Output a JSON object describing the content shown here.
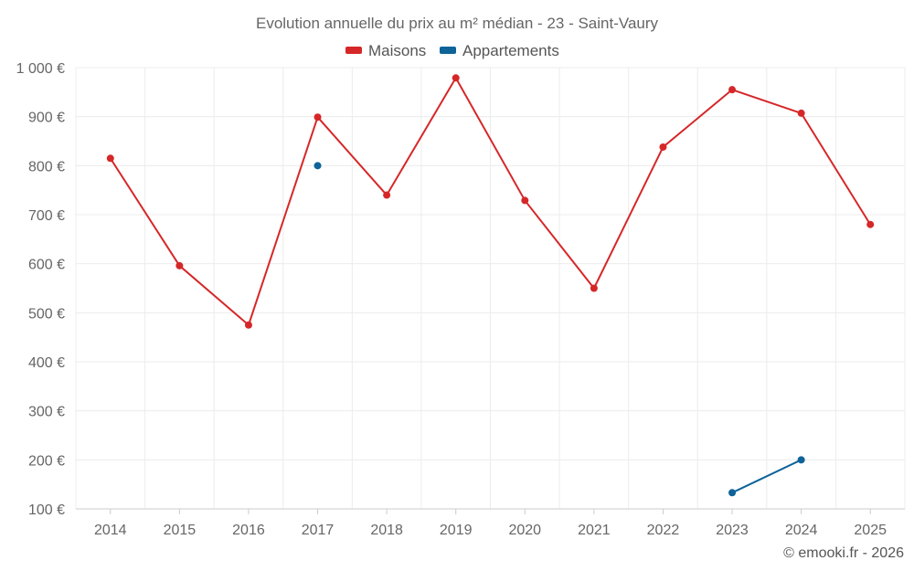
{
  "chart_data": {
    "type": "line",
    "title": "Evolution annuelle du prix au m² médian - 23 - Saint-Vaury",
    "x": [
      "2014",
      "2015",
      "2016",
      "2017",
      "2018",
      "2019",
      "2020",
      "2021",
      "2022",
      "2023",
      "2024",
      "2025"
    ],
    "y_ticks": [
      "100 €",
      "200 €",
      "300 €",
      "400 €",
      "500 €",
      "600 €",
      "700 €",
      "800 €",
      "900 €",
      "1 000 €"
    ],
    "ylim": [
      100,
      1000
    ],
    "grid": true,
    "legend_position": "top-center",
    "series": [
      {
        "name": "Maisons",
        "color": "#d62728",
        "values": [
          815,
          596,
          475,
          899,
          740,
          979,
          729,
          550,
          838,
          955,
          907,
          680
        ]
      },
      {
        "name": "Appartements",
        "color": "#0e6398",
        "values": [
          null,
          null,
          null,
          800,
          null,
          null,
          null,
          null,
          null,
          133,
          200,
          null
        ]
      }
    ],
    "credit": "© emooki.fr - 2026"
  }
}
